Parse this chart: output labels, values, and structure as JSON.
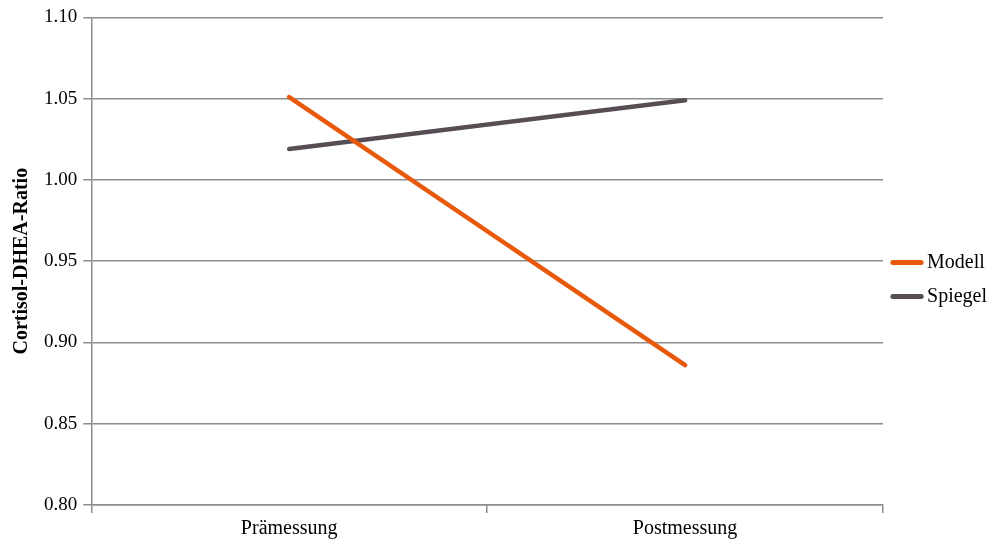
{
  "chart_data": {
    "type": "line",
    "ylabel": "Cortisol-DHEA-Ratio",
    "categories": [
      "Prämessung",
      "Postmessung"
    ],
    "series": [
      {
        "name": "Modell",
        "color": "#e8590c",
        "values": [
          1.051,
          0.886
        ]
      },
      {
        "name": "Spiegel",
        "color": "#574e55",
        "values": [
          1.019,
          1.049
        ]
      }
    ],
    "ylim": [
      0.8,
      1.1
    ],
    "yticks": [
      {
        "value": 0.8,
        "label": "0.80"
      },
      {
        "value": 0.85,
        "label": "0.85"
      },
      {
        "value": 0.9,
        "label": "0.90"
      },
      {
        "value": 0.95,
        "label": "0.95"
      },
      {
        "value": 1.0,
        "label": "1.00"
      },
      {
        "value": 1.05,
        "label": "1.05"
      },
      {
        "value": 1.1,
        "label": "1.10"
      }
    ],
    "grid": "y",
    "legend": "right",
    "marker": "none",
    "line_style": "solid"
  }
}
